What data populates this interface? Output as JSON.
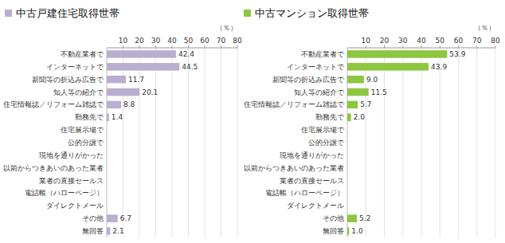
{
  "chart_data": [
    {
      "type": "bar",
      "orientation": "horizontal",
      "title": "中古戸建住宅取得世帯",
      "xlabel": "（％）",
      "categories": [
        "不動産業者で",
        "インターネットで",
        "新聞等の折込み広告で",
        "知人等の紹介で",
        "住宅情報誌／リフォーム雑誌で",
        "勤務先で",
        "住宅展示場で",
        "公的分譲で",
        "現地を通りがかった",
        "以前からつきあいのあった業者",
        "業者の直接セールス",
        "電話帳（ハローページ）",
        "ダイレクトメール",
        "その他",
        "無回答"
      ],
      "values": [
        42.4,
        44.5,
        11.7,
        20.1,
        8.8,
        1.4,
        0,
        0,
        0,
        0,
        0,
        0,
        0,
        6.7,
        2.1
      ],
      "value_labels": [
        "42.4",
        "44.5",
        "11.7",
        "20.1",
        "8.8",
        "1.4",
        null,
        null,
        null,
        null,
        null,
        null,
        null,
        "6.7",
        "2.1"
      ],
      "data_labels": true,
      "color": "#b9aed0",
      "xlim": [
        0,
        80
      ],
      "xticks": [
        10,
        20,
        30,
        40,
        50,
        60,
        70,
        80
      ],
      "grid": true
    },
    {
      "type": "bar",
      "orientation": "horizontal",
      "title": "中古マンション取得世帯",
      "xlabel": "（％）",
      "categories": [
        "不動産業者で",
        "インターネットで",
        "新聞等の折込み広告で",
        "知人等の紹介で",
        "住宅情報誌／リフォーム雑誌で",
        "勤務先で",
        "住宅展示場で",
        "公的分譲で",
        "現地を通りがかった",
        "以前からつきあいのあった業者",
        "業者の直接セールス",
        "電話帳（ハローページ）",
        "ダイレクトメール",
        "その他",
        "無回答"
      ],
      "values": [
        53.9,
        43.9,
        9.0,
        11.5,
        5.7,
        2.0,
        0,
        0,
        0,
        0,
        0,
        0,
        0,
        5.2,
        1.0
      ],
      "value_labels": [
        "53.9",
        "43.9",
        "9.0",
        "11.5",
        "5.7",
        "2.0",
        null,
        null,
        null,
        null,
        null,
        null,
        null,
        "5.2",
        "1.0"
      ],
      "data_labels": true,
      "color": "#8dc63f",
      "xlim": [
        0,
        80
      ],
      "xticks": [
        10,
        20,
        30,
        40,
        50,
        60,
        70,
        80
      ],
      "grid": true
    }
  ]
}
